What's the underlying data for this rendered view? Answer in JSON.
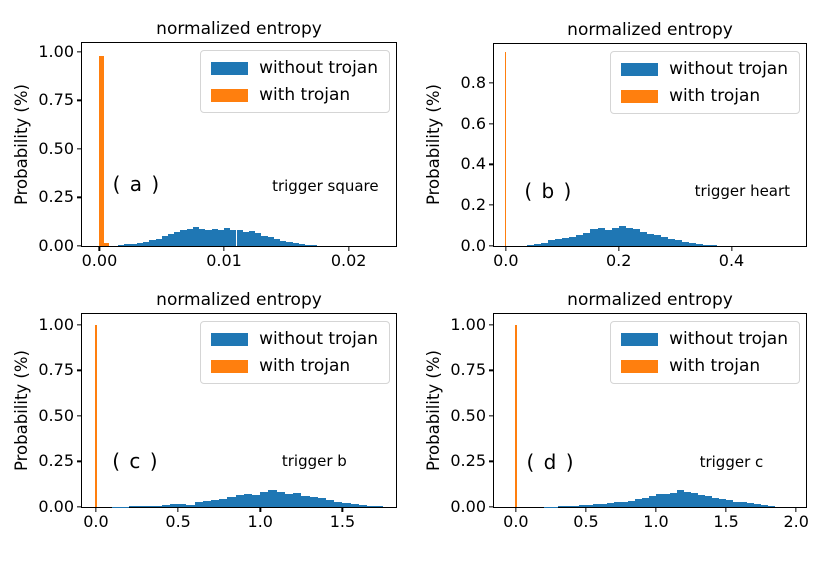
{
  "chart_data": [
    {
      "type": "bar",
      "panel_label": "( a )",
      "trigger_label": "trigger square",
      "title": "normalized entropy",
      "ylabel": "Probability (%)",
      "legend_position": "upper right",
      "grid": false,
      "xlim": [
        -0.0014,
        0.0238
      ],
      "ylim": [
        0,
        1.046
      ],
      "xticks": [
        {
          "v": 0.0,
          "label": "0.00"
        },
        {
          "v": 0.01,
          "label": "0.01"
        },
        {
          "v": 0.02,
          "label": "0.02"
        }
      ],
      "yticks": [
        {
          "v": 0.0,
          "label": "0.00"
        },
        {
          "v": 0.25,
          "label": "0.25"
        },
        {
          "v": 0.5,
          "label": "0.50"
        },
        {
          "v": 0.75,
          "label": "0.75"
        },
        {
          "v": 1.0,
          "label": "1.00"
        }
      ],
      "series": [
        {
          "name": "without trojan",
          "color": "#1f77b4",
          "bin_start": 0.0015,
          "bin_width": 0.0005,
          "heights": [
            0.005,
            0.008,
            0.012,
            0.018,
            0.022,
            0.03,
            0.038,
            0.05,
            0.06,
            0.07,
            0.08,
            0.088,
            0.097,
            0.09,
            0.085,
            0.088,
            0.08,
            0.092,
            0.085,
            0.08,
            0.072,
            0.078,
            0.065,
            0.05,
            0.045,
            0.035,
            0.028,
            0.02,
            0.015,
            0.01,
            0.006,
            0.004
          ]
        },
        {
          "name": "with trojan",
          "color": "#ff7f0e",
          "bars": [
            {
              "x": -5e-05,
              "w": 0.0004,
              "h": 0.98
            },
            {
              "x": 0.00035,
              "w": 0.0004,
              "h": 0.013
            }
          ]
        }
      ]
    },
    {
      "type": "bar",
      "panel_label": "( b )",
      "trigger_label": "trigger heart",
      "title": "normalized entropy",
      "ylabel": "Probability (%)",
      "legend_position": "upper right",
      "grid": false,
      "xlim": [
        -0.021,
        0.532
      ],
      "ylim": [
        0,
        0.99
      ],
      "xticks": [
        {
          "v": 0.0,
          "label": "0.0"
        },
        {
          "v": 0.2,
          "label": "0.2"
        },
        {
          "v": 0.4,
          "label": "0.4"
        }
      ],
      "yticks": [
        {
          "v": 0.0,
          "label": "0.0"
        },
        {
          "v": 0.2,
          "label": "0.2"
        },
        {
          "v": 0.4,
          "label": "0.4"
        },
        {
          "v": 0.6,
          "label": "0.6"
        },
        {
          "v": 0.8,
          "label": "0.8"
        }
      ],
      "series": [
        {
          "name": "without trojan",
          "color": "#1f77b4",
          "bin_start": 0.0375,
          "bin_width": 0.0125,
          "heights": [
            0.004,
            0.008,
            0.014,
            0.03,
            0.034,
            0.04,
            0.046,
            0.055,
            0.065,
            0.085,
            0.086,
            0.08,
            0.086,
            0.097,
            0.09,
            0.085,
            0.07,
            0.06,
            0.055,
            0.045,
            0.035,
            0.03,
            0.02,
            0.014,
            0.009,
            0.005,
            0.003
          ]
        },
        {
          "name": "with trojan",
          "color": "#ff7f0e",
          "bars": [
            {
              "x": -0.001,
              "w": 0.002,
              "h": 0.95
            }
          ]
        }
      ]
    },
    {
      "type": "bar",
      "panel_label": "( c )",
      "trigger_label": "trigger b",
      "title": "normalized entropy",
      "ylabel": "Probability (%)",
      "legend_position": "upper right",
      "grid": false,
      "xlim": [
        -0.085,
        1.826
      ],
      "ylim": [
        0,
        1.06
      ],
      "xticks": [
        {
          "v": 0.0,
          "label": "0.0"
        },
        {
          "v": 0.5,
          "label": "0.5"
        },
        {
          "v": 1.0,
          "label": "1.0"
        },
        {
          "v": 1.5,
          "label": "1.5"
        }
      ],
      "yticks": [
        {
          "v": 0.0,
          "label": "0.00"
        },
        {
          "v": 0.25,
          "label": "0.25"
        },
        {
          "v": 0.5,
          "label": "0.50"
        },
        {
          "v": 0.75,
          "label": "0.75"
        },
        {
          "v": 1.0,
          "label": "1.00"
        }
      ],
      "series": [
        {
          "name": "without trojan",
          "color": "#1f77b4",
          "bin_start": 0.1,
          "bin_width": 0.05,
          "heights": [
            0.002,
            0.002,
            0.003,
            0.004,
            0.006,
            0.008,
            0.012,
            0.015,
            0.015,
            0.012,
            0.025,
            0.035,
            0.04,
            0.046,
            0.055,
            0.065,
            0.07,
            0.065,
            0.08,
            0.092,
            0.085,
            0.07,
            0.075,
            0.06,
            0.055,
            0.05,
            0.04,
            0.03,
            0.02,
            0.015,
            0.012,
            0.008,
            0.005
          ]
        },
        {
          "name": "with trojan",
          "color": "#ff7f0e",
          "bars": [
            {
              "x": -0.004,
              "w": 0.008,
              "h": 1.0
            }
          ]
        }
      ]
    },
    {
      "type": "bar",
      "panel_label": "( d )",
      "trigger_label": "trigger c",
      "title": "normalized entropy",
      "ylabel": "Probability (%)",
      "legend_position": "upper right",
      "grid": false,
      "xlim": [
        -0.156,
        2.07
      ],
      "ylim": [
        0,
        1.06
      ],
      "xticks": [
        {
          "v": 0.0,
          "label": "0.0"
        },
        {
          "v": 0.5,
          "label": "0.5"
        },
        {
          "v": 1.0,
          "label": "1.0"
        },
        {
          "v": 1.5,
          "label": "1.5"
        },
        {
          "v": 2.0,
          "label": "2.0"
        }
      ],
      "yticks": [
        {
          "v": 0.0,
          "label": "0.00"
        },
        {
          "v": 0.25,
          "label": "0.25"
        },
        {
          "v": 0.5,
          "label": "0.50"
        },
        {
          "v": 0.75,
          "label": "0.75"
        },
        {
          "v": 1.0,
          "label": "1.00"
        }
      ],
      "series": [
        {
          "name": "without trojan",
          "color": "#1f77b4",
          "bin_start": 0.2,
          "bin_width": 0.05,
          "heights": [
            0.002,
            0.002,
            0.003,
            0.003,
            0.008,
            0.01,
            0.012,
            0.015,
            0.018,
            0.02,
            0.025,
            0.03,
            0.035,
            0.045,
            0.05,
            0.06,
            0.07,
            0.07,
            0.075,
            0.095,
            0.08,
            0.075,
            0.065,
            0.06,
            0.05,
            0.045,
            0.04,
            0.03,
            0.025,
            0.02,
            0.015,
            0.01,
            0.008
          ]
        },
        {
          "name": "with trojan",
          "color": "#ff7f0e",
          "bars": [
            {
              "x": -0.006,
              "w": 0.012,
              "h": 1.0
            }
          ]
        }
      ]
    }
  ]
}
